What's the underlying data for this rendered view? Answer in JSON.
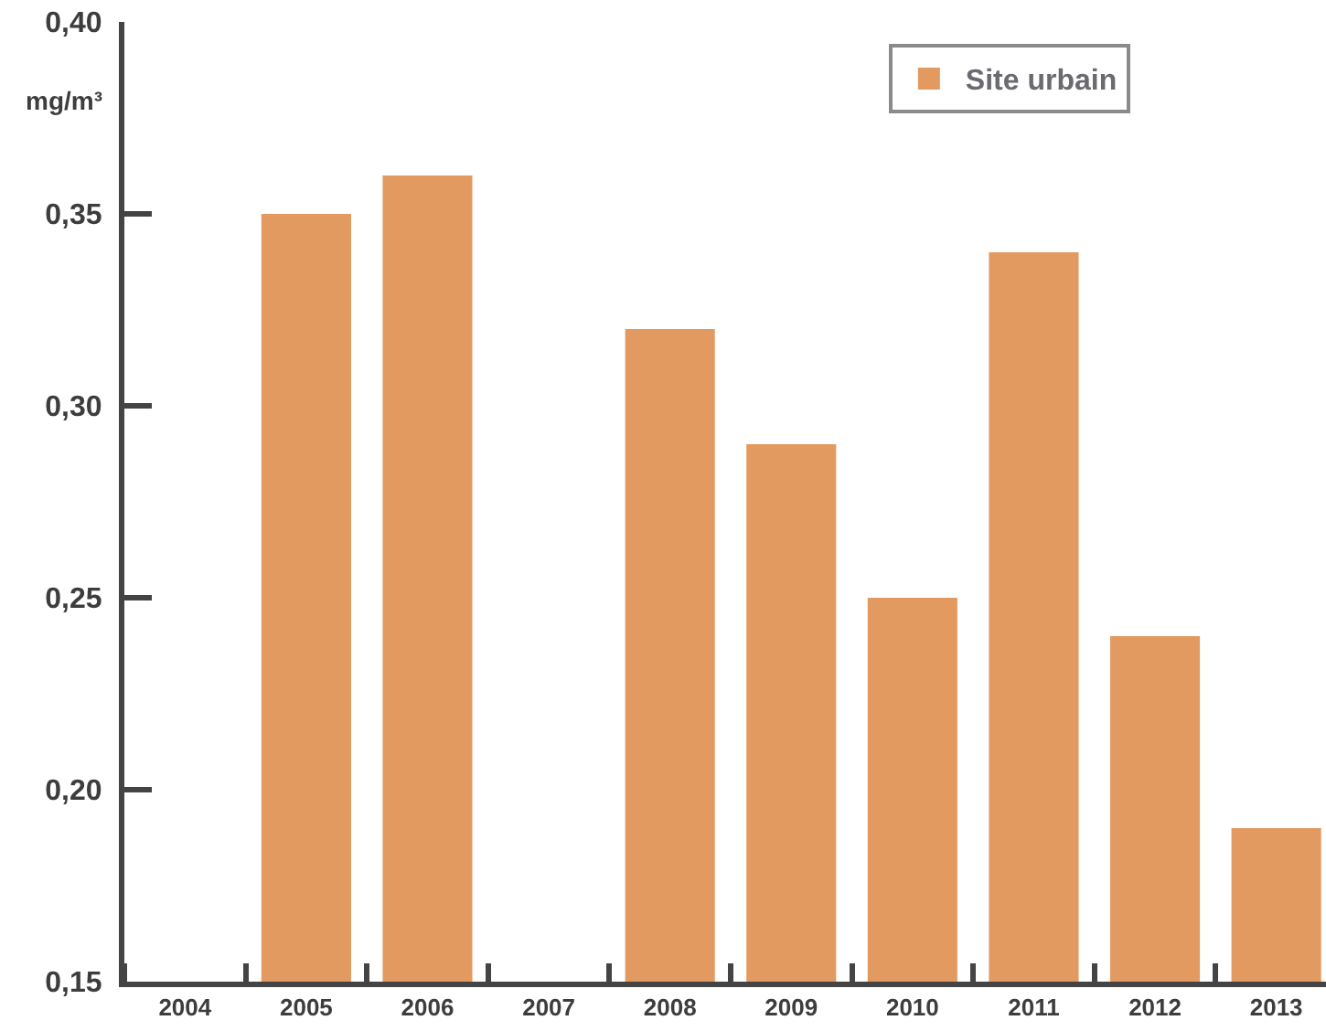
{
  "chart_data": {
    "type": "bar",
    "ylabel": "mg/m³",
    "categories": [
      "2004",
      "2005",
      "2006",
      "2007",
      "2008",
      "2009",
      "2010",
      "2011",
      "2012",
      "2013"
    ],
    "series": [
      {
        "name": "Site urbain",
        "color": "#e39a60",
        "values": [
          null,
          0.35,
          0.36,
          null,
          0.32,
          0.29,
          0.25,
          0.34,
          0.24,
          0.19
        ]
      }
    ],
    "ylim": [
      0.15,
      0.4
    ],
    "yticks": [
      {
        "value": 0.15,
        "label": "0,15"
      },
      {
        "value": 0.2,
        "label": "0,20"
      },
      {
        "value": 0.25,
        "label": "0,25"
      },
      {
        "value": 0.3,
        "label": "0,30"
      },
      {
        "value": 0.35,
        "label": "0,35"
      },
      {
        "value": 0.4,
        "label": "0,40"
      }
    ],
    "legend": "top right"
  }
}
